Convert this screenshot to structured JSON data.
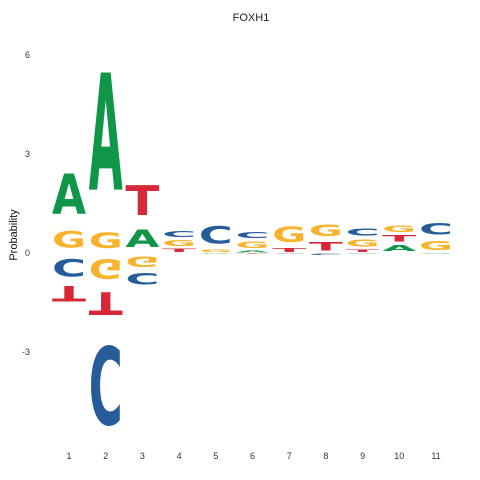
{
  "chart_data": {
    "type": "sequence-logo",
    "title": "FOXH1",
    "xlabel": "",
    "ylabel": "Probability",
    "ylim": [
      -5.8,
      6.5
    ],
    "y_ticks": [
      -3,
      0,
      3,
      6
    ],
    "positions": [
      1,
      2,
      3,
      4,
      5,
      6,
      7,
      8,
      9,
      10,
      11
    ],
    "colors": {
      "A": "#109648",
      "C": "#255c99",
      "G": "#f7b32b",
      "T": "#d62839"
    },
    "stacks": [
      {
        "pos": 1,
        "above": [
          [
            "G",
            0.78
          ],
          [
            "A",
            1.95
          ]
        ],
        "below": [
          [
            "C",
            0.85
          ],
          [
            "T",
            0.75
          ]
        ]
      },
      {
        "pos": 2,
        "above": [
          [
            "G",
            0.75
          ],
          [
            "A",
            5.7
          ]
        ],
        "below": [
          [
            "G",
            0.95
          ],
          [
            "T",
            1.1
          ],
          [
            "C",
            3.8
          ]
        ]
      },
      {
        "pos": 3,
        "above": [
          [
            "A",
            0.85
          ],
          [
            "T",
            1.45
          ]
        ],
        "below": [
          [
            "G",
            0.5
          ],
          [
            "C",
            0.55
          ]
        ]
      },
      {
        "pos": 4,
        "above": [
          [
            "T",
            0.15
          ],
          [
            "G",
            0.28
          ],
          [
            "C",
            0.28
          ]
        ],
        "below": []
      },
      {
        "pos": 5,
        "above": [
          [
            "G",
            0.12
          ],
          [
            "C",
            0.85
          ]
        ],
        "below": [
          [
            "A",
            0.02
          ]
        ]
      },
      {
        "pos": 6,
        "above": [
          [
            "A",
            0.08
          ],
          [
            "G",
            0.32
          ],
          [
            "C",
            0.28
          ]
        ],
        "below": [
          [
            "T",
            0.03
          ]
        ]
      },
      {
        "pos": 7,
        "above": [
          [
            "T",
            0.18
          ],
          [
            "G",
            0.75
          ]
        ],
        "below": [
          [
            "C",
            0.02
          ]
        ]
      },
      {
        "pos": 8,
        "above": [
          [
            "T",
            0.4
          ],
          [
            "G",
            0.55
          ]
        ],
        "below": [
          [
            "C",
            0.05
          ]
        ]
      },
      {
        "pos": 9,
        "above": [
          [
            "T",
            0.12
          ],
          [
            "G",
            0.35
          ],
          [
            "C",
            0.33
          ]
        ],
        "below": [
          [
            "A",
            0.02
          ]
        ]
      },
      {
        "pos": 10,
        "above": [
          [
            "A",
            0.28
          ],
          [
            "T",
            0.3
          ],
          [
            "G",
            0.3
          ]
        ],
        "below": []
      },
      {
        "pos": 11,
        "above": [
          [
            "G",
            0.45
          ],
          [
            "C",
            0.55
          ]
        ],
        "below": [
          [
            "A",
            0.02
          ]
        ]
      }
    ]
  }
}
